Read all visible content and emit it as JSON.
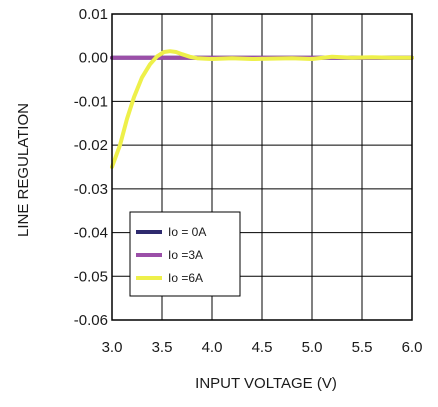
{
  "chart_data": {
    "type": "line",
    "title": "",
    "xlabel": "INPUT VOLTAGE (V)",
    "ylabel": "LINE REGULATION",
    "xlim": [
      3.0,
      6.0
    ],
    "ylim": [
      -0.06,
      0.01
    ],
    "x_ticks": [
      "3.0",
      "3.5",
      "4.0",
      "4.5",
      "5.0",
      "5.5",
      "6.0"
    ],
    "y_ticks": [
      "0.01",
      "0.00",
      "-0.01",
      "-0.02",
      "-0.03",
      "-0.04",
      "-0.05",
      "-0.06"
    ],
    "grid": true,
    "legend_position": "lower-left",
    "series": [
      {
        "name": "Io = 0A",
        "color": "#2e2a6e",
        "x": [
          3.0,
          6.0
        ],
        "y": [
          0.0,
          0.0
        ]
      },
      {
        "name": "Io =3A",
        "color": "#9b4fa8",
        "x": [
          3.0,
          3.3,
          3.5,
          6.0
        ],
        "y": [
          0.0,
          0.0,
          0.0,
          0.0
        ]
      },
      {
        "name": "Io =6A",
        "color": "#eef04a",
        "x": [
          3.0,
          3.08,
          3.15,
          3.22,
          3.3,
          3.38,
          3.45,
          3.52,
          3.58,
          3.64,
          3.7,
          3.78,
          3.85,
          3.92,
          4.0,
          4.1,
          4.2,
          4.4,
          4.6,
          4.8,
          5.0,
          5.2,
          5.4,
          5.6,
          5.8,
          6.0
        ],
        "y": [
          -0.025,
          -0.02,
          -0.014,
          -0.009,
          -0.0045,
          -0.0015,
          0.0003,
          0.0013,
          0.0015,
          0.0013,
          0.0008,
          0.0002,
          -0.0001,
          -0.0002,
          -0.0003,
          -0.0002,
          -0.0001,
          -0.0003,
          -0.0002,
          -0.0001,
          -0.0003,
          0.0002,
          0.0,
          0.0001,
          0.0,
          0.0
        ]
      }
    ]
  }
}
